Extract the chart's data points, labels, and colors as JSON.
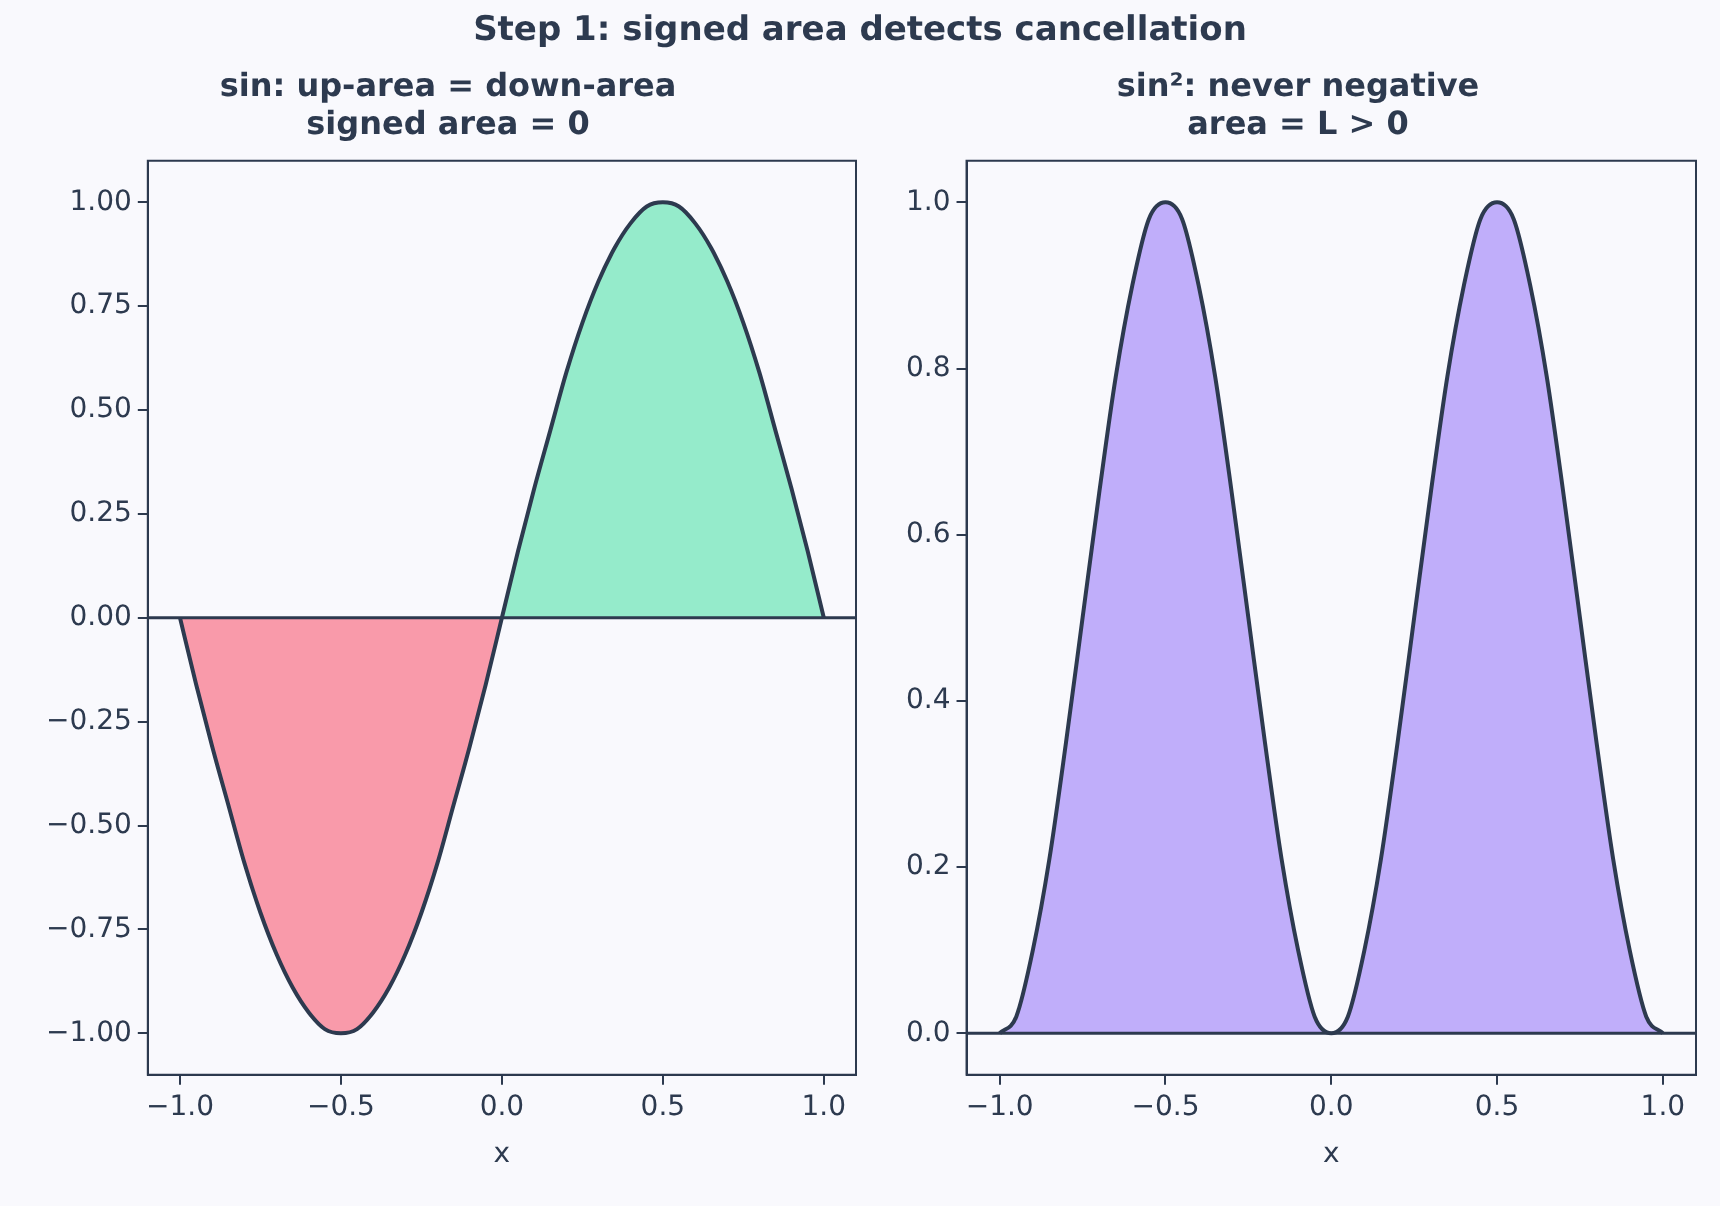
{
  "chart_data": [
    {
      "type": "area",
      "title": "Step 1: signed area detects cancellation",
      "subtitle": "sin: up-area = down-area\nsigned area = 0",
      "xlabel": "x",
      "series": [
        {
          "color": "#f99aaa",
          "x": [
            -1,
            -0.95,
            -0.9,
            -0.85,
            -0.8,
            -0.75,
            -0.7,
            -0.65,
            -0.6,
            -0.55,
            -0.5,
            -0.45,
            -0.4,
            -0.35,
            -0.3,
            -0.25,
            -0.2,
            -0.15,
            -0.1,
            -0.05,
            0
          ],
          "values": [
            0,
            -0.16,
            -0.31,
            -0.45,
            -0.59,
            -0.71,
            -0.81,
            -0.89,
            -0.95,
            -0.99,
            -1,
            -0.99,
            -0.95,
            -0.89,
            -0.81,
            -0.71,
            -0.59,
            -0.45,
            -0.31,
            -0.16,
            0
          ]
        },
        {
          "color": "#95ebcb",
          "x": [
            0,
            0.05,
            0.1,
            0.15,
            0.2,
            0.25,
            0.3,
            0.35,
            0.4,
            0.45,
            0.5,
            0.55,
            0.6,
            0.65,
            0.7,
            0.75,
            0.8,
            0.85,
            0.9,
            0.95,
            1
          ],
          "values": [
            0,
            0.16,
            0.31,
            0.45,
            0.59,
            0.71,
            0.81,
            0.89,
            0.95,
            0.99,
            1,
            0.99,
            0.95,
            0.89,
            0.81,
            0.71,
            0.59,
            0.45,
            0.31,
            0.16,
            0
          ]
        }
      ],
      "xlim": [
        -1.1,
        1.1
      ],
      "xticks": [
        {
          "value": -1,
          "label": "−1.0"
        },
        {
          "value": -0.5,
          "label": "−0.5"
        },
        {
          "value": 0,
          "label": "0.0"
        },
        0.5,
        {
          "value": 1,
          "label": "1.0"
        }
      ],
      "ylim": [
        -1.1,
        1.1
      ],
      "yticks": [
        {
          "value": -1,
          "label": "−1.00"
        },
        {
          "value": -0.75,
          "label": "−0.75"
        },
        {
          "value": -0.5,
          "label": "−0.50"
        },
        {
          "value": -0.25,
          "label": "−0.25"
        },
        {
          "value": 0,
          "label": "0.00"
        },
        0.25,
        {
          "value": 0.5,
          "label": "0.50"
        },
        0.75,
        {
          "value": 1,
          "label": "1.00"
        }
      ],
      "ref_lines": [
        {
          "axis": "y",
          "value": 0,
          "color": "#2d3a4f"
        }
      ],
      "grid": false,
      "legend": false
    },
    {
      "type": "area",
      "subtitle": "sin²: never negative\narea = L > 0",
      "xlabel": "x",
      "series": [
        {
          "color": "#c0aefa",
          "x": [
            -1,
            -0.95,
            -0.9,
            -0.85,
            -0.8,
            -0.75,
            -0.7,
            -0.65,
            -0.6,
            -0.55,
            -0.5,
            -0.45,
            -0.4,
            -0.35,
            -0.3,
            -0.25,
            -0.2,
            -0.15,
            -0.1,
            -0.05,
            0,
            0.05,
            0.1,
            0.15,
            0.2,
            0.25,
            0.3,
            0.35,
            0.4,
            0.45,
            0.5,
            0.55,
            0.6,
            0.65,
            0.7,
            0.75,
            0.8,
            0.85,
            0.9,
            0.95,
            1
          ],
          "values": [
            0,
            0.02,
            0.1,
            0.21,
            0.35,
            0.5,
            0.65,
            0.79,
            0.9,
            0.98,
            1,
            0.98,
            0.9,
            0.79,
            0.65,
            0.5,
            0.35,
            0.21,
            0.1,
            0.02,
            0,
            0.02,
            0.1,
            0.21,
            0.35,
            0.5,
            0.65,
            0.79,
            0.9,
            0.98,
            1,
            0.98,
            0.9,
            0.79,
            0.65,
            0.5,
            0.35,
            0.21,
            0.1,
            0.02,
            0
          ]
        }
      ],
      "xlim": [
        -1.1,
        1.1
      ],
      "xticks": [
        {
          "value": -1,
          "label": "−1.0"
        },
        {
          "value": -0.5,
          "label": "−0.5"
        },
        {
          "value": 0,
          "label": "0.0"
        },
        0.5,
        {
          "value": 1,
          "label": "1.0"
        }
      ],
      "ylim": [
        -0.05,
        1.05
      ],
      "yticks": [
        {
          "value": 0,
          "label": "0.0"
        },
        0.2,
        0.4,
        0.6,
        0.8,
        {
          "value": 1,
          "label": "1.0"
        }
      ],
      "ref_lines": [
        {
          "axis": "y",
          "value": 0,
          "color": "#2d3a4f"
        }
      ],
      "grid": false,
      "legend": false
    }
  ]
}
